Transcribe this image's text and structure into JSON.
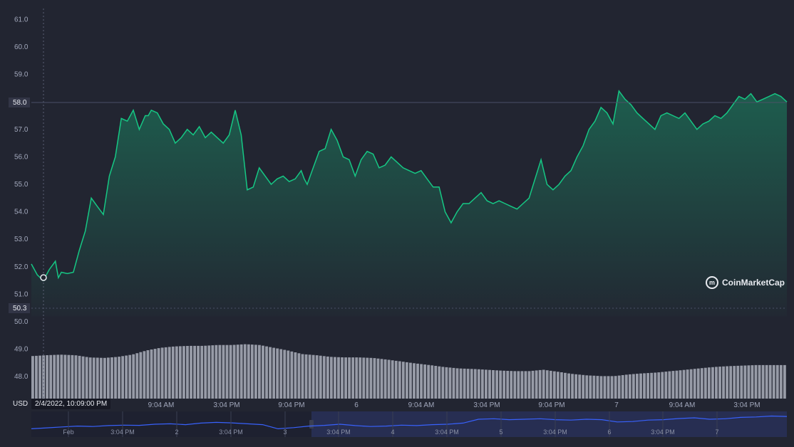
{
  "brand": {
    "name": "CoinMarketCap"
  },
  "currency_label": "USD",
  "crosshair_date": "2/4/2022, 10:09:00 PM",
  "current_price_badge": "58.0",
  "low_price_badge": "50.3",
  "colors": {
    "background": "#222531",
    "price_line": "#16c784",
    "area_top": "#16c784",
    "volume_bar": "#a4a8b5",
    "navigator_line": "#3861fb",
    "navigator_fill": "#2b3561"
  },
  "chart_data": {
    "type": "line",
    "ylim": [
      47.2,
      61.4
    ],
    "y_ticks": [
      "61.0",
      "60.0",
      "59.0",
      "58.0",
      "57.0",
      "56.0",
      "55.0",
      "54.0",
      "53.0",
      "52.0",
      "51.0",
      "50.0",
      "49.0",
      "48.0"
    ],
    "x_ticks": [
      "9:04 AM",
      "3:04 PM",
      "9:04 PM",
      "6",
      "9:04 AM",
      "3:04 PM",
      "9:04 PM",
      "7",
      "9:04 AM",
      "3:04 PM"
    ],
    "series": [
      {
        "kind": "price",
        "x": [
          0,
          2,
          4,
          6,
          8,
          9,
          10,
          12,
          14,
          16,
          18,
          20,
          22,
          24,
          26,
          28,
          30,
          32,
          34,
          36,
          38,
          39,
          40,
          42,
          44,
          46,
          48,
          50,
          52,
          54,
          56,
          58,
          60,
          62,
          64,
          66,
          68,
          70,
          72,
          74,
          76,
          78,
          80,
          82,
          84,
          86,
          88,
          90,
          91,
          92,
          94,
          96,
          98,
          100,
          102,
          104,
          106,
          108,
          110,
          112,
          114,
          116,
          118,
          120,
          122,
          124,
          126,
          128,
          130,
          132,
          134,
          136,
          138,
          140,
          142,
          144,
          146,
          148,
          150,
          152,
          154,
          156,
          158,
          160,
          162,
          164,
          166,
          168,
          170,
          172,
          174,
          176,
          178,
          180,
          182,
          184,
          186,
          188,
          190,
          192,
          194,
          196,
          198,
          200,
          202,
          204,
          206,
          208,
          210,
          212,
          214,
          216,
          218,
          220,
          222,
          224,
          226,
          228,
          230,
          232,
          234,
          236,
          238,
          240,
          242,
          244,
          246,
          248,
          250,
          252
        ],
        "values": [
          52.1,
          51.7,
          51.5,
          51.9,
          52.2,
          51.6,
          51.8,
          51.75,
          51.8,
          52.6,
          53.3,
          54.5,
          54.2,
          53.9,
          55.3,
          56.0,
          57.4,
          57.3,
          57.7,
          57.0,
          57.5,
          57.5,
          57.7,
          57.6,
          57.2,
          57.0,
          56.5,
          56.7,
          57.0,
          56.8,
          57.1,
          56.7,
          56.9,
          56.7,
          56.5,
          56.8,
          57.7,
          56.8,
          54.8,
          54.9,
          55.6,
          55.3,
          55.0,
          55.2,
          55.3,
          55.1,
          55.2,
          55.5,
          55.2,
          55.0,
          55.6,
          56.2,
          56.3,
          57.0,
          56.6,
          56.0,
          55.9,
          55.3,
          55.9,
          56.2,
          56.1,
          55.6,
          55.7,
          56.0,
          55.8,
          55.6,
          55.5,
          55.4,
          55.5,
          55.2,
          54.9,
          54.9,
          54.0,
          53.6,
          54.0,
          54.3,
          54.3,
          54.5,
          54.7,
          54.4,
          54.3,
          54.4,
          54.3,
          54.2,
          54.1,
          54.3,
          54.5,
          55.2,
          55.9,
          55.0,
          54.8,
          55.0,
          55.3,
          55.5,
          56.0,
          56.4,
          57.0,
          57.3,
          57.8,
          57.6,
          57.2,
          58.4,
          58.1,
          57.9,
          57.6,
          57.4,
          57.2,
          57.0,
          57.5,
          57.6,
          57.5,
          57.4,
          57.6,
          57.3,
          57.0,
          57.2,
          57.3,
          57.5,
          57.4,
          57.6,
          57.9,
          58.2,
          58.1,
          58.3,
          58.0,
          58.1,
          58.2,
          58.3,
          58.2,
          58.0
        ]
      },
      {
        "kind": "volume",
        "values": [
          48.75,
          48.78,
          48.8,
          48.78,
          48.7,
          48.68,
          48.72,
          48.8,
          48.95,
          49.05,
          49.1,
          49.12,
          49.12,
          49.15,
          49.15,
          49.18,
          49.15,
          49.05,
          48.95,
          48.82,
          48.78,
          48.72,
          48.7,
          48.7,
          48.68,
          48.62,
          48.55,
          48.48,
          48.42,
          48.35,
          48.3,
          48.28,
          48.25,
          48.22,
          48.2,
          48.2,
          48.25,
          48.18,
          48.1,
          48.05,
          48.02,
          48.02,
          48.08,
          48.12,
          48.15,
          48.2,
          48.25,
          48.3,
          48.35,
          48.38,
          48.4,
          48.42,
          48.42,
          48.42
        ]
      }
    ]
  },
  "navigator": {
    "ticks": [
      "Feb",
      "3:04 PM",
      "2",
      "3:04 PM",
      "3",
      "3:04 PM",
      "4",
      "3:04 PM",
      "5",
      "3:04 PM",
      "6",
      "3:04 PM",
      "7"
    ],
    "values": [
      0.3,
      0.34,
      0.38,
      0.42,
      0.4,
      0.44,
      0.46,
      0.45,
      0.5,
      0.52,
      0.48,
      0.55,
      0.58,
      0.56,
      0.52,
      0.48,
      0.3,
      0.35,
      0.42,
      0.45,
      0.5,
      0.44,
      0.4,
      0.42,
      0.46,
      0.44,
      0.48,
      0.5,
      0.55,
      0.72,
      0.74,
      0.7,
      0.72,
      0.74,
      0.7,
      0.68,
      0.72,
      0.7,
      0.6,
      0.62,
      0.68,
      0.7,
      0.75,
      0.78,
      0.72,
      0.74,
      0.8,
      0.82,
      0.86,
      0.84
    ]
  }
}
